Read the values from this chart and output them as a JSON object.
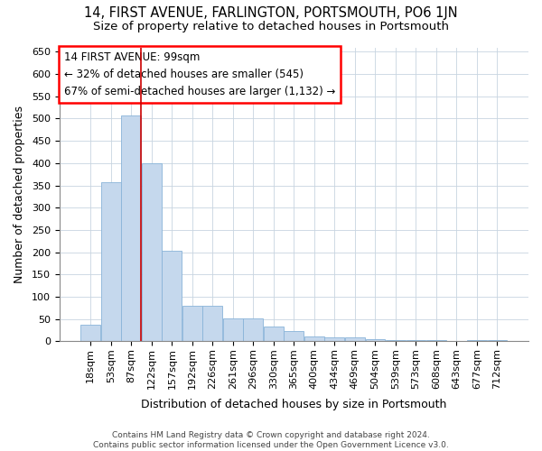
{
  "title": "14, FIRST AVENUE, FARLINGTON, PORTSMOUTH, PO6 1JN",
  "subtitle": "Size of property relative to detached houses in Portsmouth",
  "xlabel": "Distribution of detached houses by size in Portsmouth",
  "ylabel": "Number of detached properties",
  "categories": [
    "18sqm",
    "53sqm",
    "87sqm",
    "122sqm",
    "157sqm",
    "192sqm",
    "226sqm",
    "261sqm",
    "296sqm",
    "330sqm",
    "365sqm",
    "400sqm",
    "434sqm",
    "469sqm",
    "504sqm",
    "539sqm",
    "573sqm",
    "608sqm",
    "643sqm",
    "677sqm",
    "712sqm"
  ],
  "values": [
    37,
    357,
    507,
    400,
    203,
    80,
    80,
    52,
    52,
    33,
    22,
    11,
    8,
    8,
    5,
    3,
    3,
    3,
    1,
    2,
    3
  ],
  "bar_color": "#c5d8ed",
  "bar_edge_color": "#89b4d9",
  "vline_x_index": 2,
  "vline_color": "#cc0000",
  "annotation_line1": "14 FIRST AVENUE: 99sqm",
  "annotation_line2": "← 32% of detached houses are smaller (545)",
  "annotation_line3": "67% of semi-detached houses are larger (1,132) →",
  "ylim": [
    0,
    660
  ],
  "yticks": [
    0,
    50,
    100,
    150,
    200,
    250,
    300,
    350,
    400,
    450,
    500,
    550,
    600,
    650
  ],
  "footer1": "Contains HM Land Registry data © Crown copyright and database right 2024.",
  "footer2": "Contains public sector information licensed under the Open Government Licence v3.0.",
  "background_color": "#ffffff",
  "plot_bg_color": "#ffffff",
  "grid_color": "#c8d4e0",
  "title_fontsize": 10.5,
  "subtitle_fontsize": 9.5,
  "annotation_fontsize": 8.5,
  "axis_label_fontsize": 9,
  "tick_fontsize": 8,
  "footer_fontsize": 6.5
}
